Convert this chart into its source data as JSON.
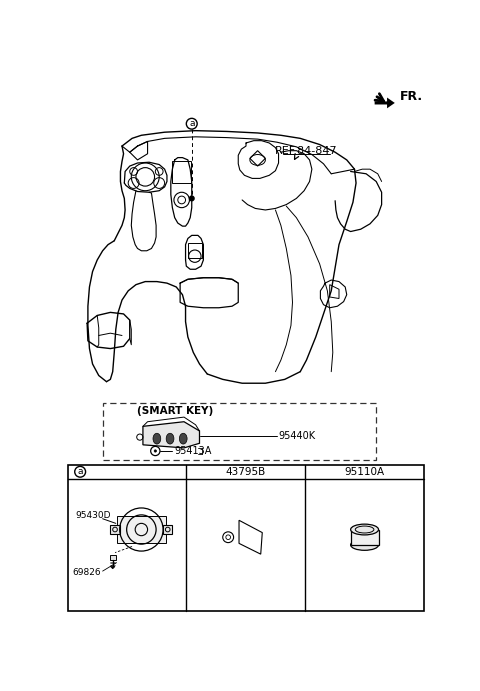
{
  "bg_color": "#ffffff",
  "fr_label": "FR.",
  "ref_label": "REF.84-847",
  "smart_key_label": "(SMART KEY)",
  "parts": {
    "95440K": "95440K",
    "95413A": "95413A",
    "95430D": "95430D",
    "69826": "69826",
    "43795B": "43795B",
    "95110A": "95110A"
  },
  "table_headers": [
    "a",
    "43795B",
    "95110A"
  ],
  "lc": "#000000",
  "tc": "#000000",
  "gray_light": "#cccccc",
  "gray_mid": "#888888"
}
